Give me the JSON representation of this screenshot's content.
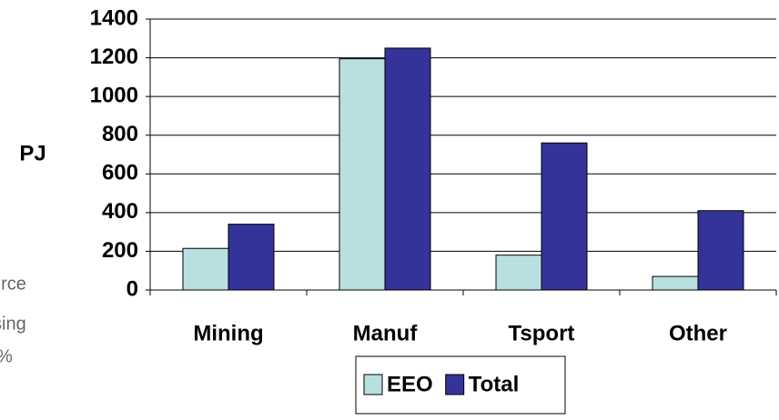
{
  "chart_data": {
    "type": "bar",
    "ylabel": "PJ",
    "categories": [
      "Mining",
      "Manuf",
      "Tsport",
      "Other"
    ],
    "series": [
      {
        "name": "EEO",
        "color": "#b9e0e0",
        "values": [
          215,
          1195,
          180,
          70
        ]
      },
      {
        "name": "Total",
        "color": "#333399",
        "values": [
          340,
          1250,
          760,
          410
        ]
      }
    ],
    "ylim": [
      0,
      1400
    ],
    "yticks": [
      0,
      200,
      400,
      600,
      800,
      1000,
      1200,
      1400
    ],
    "grid": true,
    "legend": "bottom",
    "annotations": [
      "urce",
      "sing",
      "%"
    ]
  }
}
